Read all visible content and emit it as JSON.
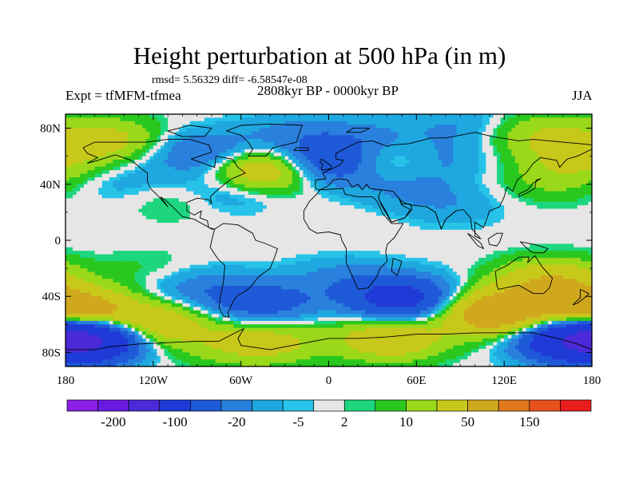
{
  "chart_data": {
    "type": "heatmap",
    "title": "Height perturbation at 500 hPa (in m)",
    "stats_text": "rmsd= 5.56329 diff= -6.58547e-08",
    "experiment": "Expt = tfMFM-tfmea",
    "period": "2808kyr BP - 0000kyr BP",
    "season": "JJA",
    "xlabel": "",
    "ylabel": "",
    "xlim": [
      -180,
      180
    ],
    "ylim": [
      -90,
      90
    ],
    "x_ticks": [
      -180,
      -120,
      -60,
      0,
      60,
      120,
      180
    ],
    "x_tick_labels": [
      "180",
      "120W",
      "60W",
      "0",
      "60E",
      "120E",
      "180"
    ],
    "y_ticks": [
      80,
      40,
      0,
      -40,
      -80
    ],
    "y_tick_labels": [
      "80N",
      "40N",
      "0",
      "40S",
      "80S"
    ],
    "colorbar": {
      "colors": [
        "#8c1fe6",
        "#6a1ae0",
        "#4b2ad8",
        "#1f3ad6",
        "#1e5ad8",
        "#2a80dd",
        "#1ea8df",
        "#27c3e8",
        "#e6e6e6",
        "#1dd67e",
        "#2ac81e",
        "#9ad81a",
        "#c8c81a",
        "#d0a81e",
        "#e0781e",
        "#e8501e",
        "#e81e1e"
      ],
      "labels": [
        "-200",
        "-100",
        "-20",
        "-5",
        "2",
        "10",
        "50",
        "150"
      ]
    },
    "anomaly_centers": [
      {
        "lon": -175,
        "lat": -52,
        "value": 40
      },
      {
        "lon": -120,
        "lat": -60,
        "value": 20
      },
      {
        "lon": -168,
        "lat": -70,
        "value": -60
      },
      {
        "lon": 163,
        "lat": -70,
        "value": -30
      },
      {
        "lon": 115,
        "lat": -52,
        "value": 35
      },
      {
        "lon": 152,
        "lat": -30,
        "value": 20
      },
      {
        "lon": 42,
        "lat": -70,
        "value": 18
      },
      {
        "lon": -40,
        "lat": -72,
        "value": 12
      },
      {
        "lon": -70,
        "lat": -75,
        "value": 5
      },
      {
        "lon": -45,
        "lat": -45,
        "value": -15
      },
      {
        "lon": -90,
        "lat": -35,
        "value": -8
      },
      {
        "lon": 50,
        "lat": -42,
        "value": -28
      },
      {
        "lon": 10,
        "lat": -28,
        "value": -6
      },
      {
        "lon": -120,
        "lat": -22,
        "value": 3
      },
      {
        "lon": -150,
        "lat": 72,
        "value": 12
      },
      {
        "lon": -175,
        "lat": 58,
        "value": 3
      },
      {
        "lon": -140,
        "lat": 42,
        "value": -4
      },
      {
        "lon": -100,
        "lat": 30,
        "value": 5
      },
      {
        "lon": -85,
        "lat": 62,
        "value": -12
      },
      {
        "lon": -72,
        "lat": 35,
        "value": -8
      },
      {
        "lon": -45,
        "lat": 50,
        "value": 22
      },
      {
        "lon": -25,
        "lat": 75,
        "value": -6
      },
      {
        "lon": 0,
        "lat": 55,
        "value": -20
      },
      {
        "lon": 25,
        "lat": 70,
        "value": -8
      },
      {
        "lon": 40,
        "lat": 58,
        "value": 12
      },
      {
        "lon": 70,
        "lat": 58,
        "value": -8
      },
      {
        "lon": 90,
        "lat": 82,
        "value": -5
      },
      {
        "lon": 50,
        "lat": 38,
        "value": -5
      },
      {
        "lon": 85,
        "lat": 25,
        "value": -4
      },
      {
        "lon": 145,
        "lat": 75,
        "value": 10
      },
      {
        "lon": 165,
        "lat": 55,
        "value": 7
      },
      {
        "lon": 150,
        "lat": 40,
        "value": 4
      },
      {
        "lon": 15,
        "lat": 10,
        "value": 0.5
      }
    ]
  }
}
